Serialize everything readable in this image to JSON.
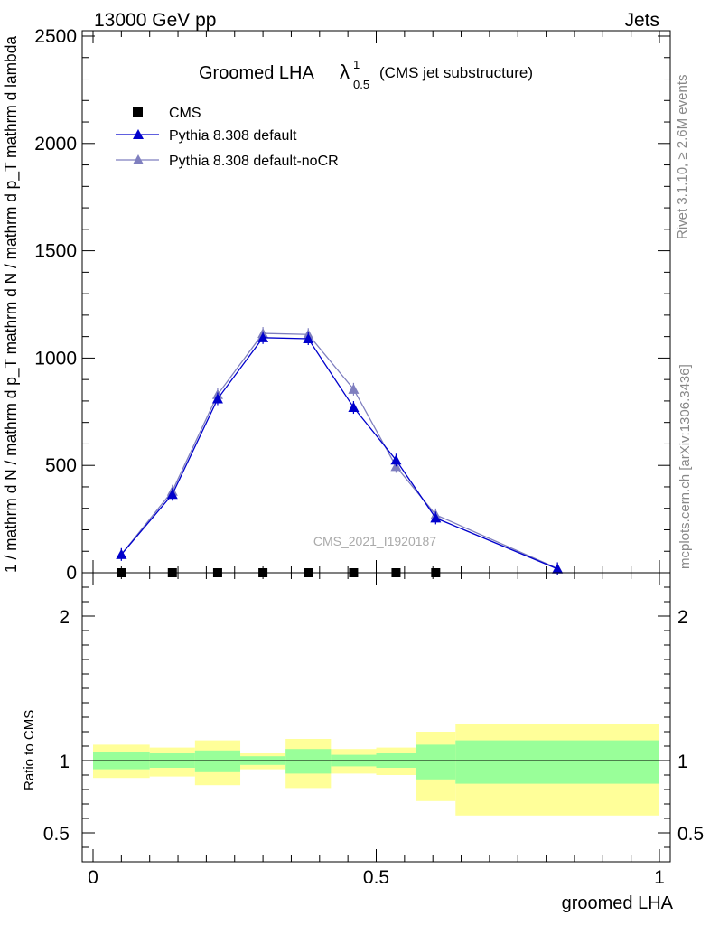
{
  "header": {
    "left": "13000 GeV pp",
    "right": "Jets"
  },
  "title": {
    "main": "Groomed LHA",
    "sym": "λ",
    "sup": "1",
    "sub": "0.5",
    "paren": "(CMS jet substructure)"
  },
  "ylabel_top": "1 / mathrm d N / mathrm d p_T mathrm d N / mathrm d p_T mathrm d lambda",
  "ylabel_ratio": "Ratio to CMS",
  "xlabel": "groomed LHA",
  "watermark": "CMS_2021_I1920187",
  "side_texts": {
    "rivet": "Rivet 3.1.10, ≥ 2.6M events",
    "mcplots": "mcplots.cern.ch [arXiv:1306.3436]"
  },
  "colors": {
    "pythia_default": "#0000cc",
    "pythia_nocr": "#7f7fbf",
    "band_inner": "#99ff99",
    "band_outer": "#ffff99",
    "cms": "#000000"
  },
  "chart_data": [
    {
      "type": "line",
      "xlim": [
        0,
        1
      ],
      "ylim": [
        0,
        2500
      ],
      "yticks": [
        0,
        500,
        1000,
        1500,
        2000,
        2500
      ],
      "ytick_labels": [
        "0",
        "500",
        "1000",
        "1500",
        "2000",
        "2500"
      ],
      "legend_position": "top-left",
      "series": [
        {
          "name": "CMS",
          "marker": "square",
          "x": [
            0.05,
            0.14,
            0.22,
            0.3,
            0.38,
            0.46,
            0.535,
            0.605
          ],
          "y": [
            0,
            0,
            0,
            0,
            0,
            0,
            0,
            0
          ]
        },
        {
          "name": "Pythia 8.308 default",
          "marker": "triangle",
          "x": [
            0.05,
            0.14,
            0.22,
            0.3,
            0.38,
            0.46,
            0.535,
            0.605,
            0.82
          ],
          "y": [
            85,
            365,
            810,
            1095,
            1090,
            770,
            525,
            255,
            18
          ]
        },
        {
          "name": "Pythia 8.308 default-noCR",
          "marker": "triangle",
          "x": [
            0.05,
            0.14,
            0.22,
            0.3,
            0.38,
            0.46,
            0.535,
            0.605,
            0.82
          ],
          "y": [
            85,
            380,
            830,
            1115,
            1110,
            855,
            495,
            270,
            20
          ]
        }
      ]
    },
    {
      "type": "area",
      "name": "Ratio to CMS",
      "xlim": [
        0,
        1
      ],
      "ylim": [
        0.3,
        2.3
      ],
      "yticks": [
        0.5,
        1,
        2
      ],
      "ytick_labels": [
        "0.5",
        "1",
        "2"
      ],
      "xticks": [
        0,
        0.5,
        1
      ],
      "xtick_labels": [
        "0",
        "0.5",
        "1"
      ],
      "bins": [
        {
          "x0": 0.0,
          "x1": 0.1,
          "inner": [
            0.94,
            1.06
          ],
          "outer": [
            0.88,
            1.11
          ]
        },
        {
          "x0": 0.1,
          "x1": 0.18,
          "inner": [
            0.95,
            1.05
          ],
          "outer": [
            0.89,
            1.09
          ]
        },
        {
          "x0": 0.18,
          "x1": 0.26,
          "inner": [
            0.92,
            1.07
          ],
          "outer": [
            0.83,
            1.14
          ]
        },
        {
          "x0": 0.26,
          "x1": 0.34,
          "inner": [
            0.97,
            1.03
          ],
          "outer": [
            0.94,
            1.05
          ]
        },
        {
          "x0": 0.34,
          "x1": 0.42,
          "inner": [
            0.91,
            1.08
          ],
          "outer": [
            0.81,
            1.15
          ]
        },
        {
          "x0": 0.42,
          "x1": 0.5,
          "inner": [
            0.96,
            1.04
          ],
          "outer": [
            0.91,
            1.08
          ]
        },
        {
          "x0": 0.5,
          "x1": 0.57,
          "inner": [
            0.95,
            1.05
          ],
          "outer": [
            0.9,
            1.09
          ]
        },
        {
          "x0": 0.57,
          "x1": 0.64,
          "inner": [
            0.87,
            1.11
          ],
          "outer": [
            0.72,
            1.2
          ]
        },
        {
          "x0": 0.64,
          "x1": 1.0,
          "inner": [
            0.84,
            1.14
          ],
          "outer": [
            0.62,
            1.25
          ]
        }
      ],
      "reference": 1
    }
  ]
}
